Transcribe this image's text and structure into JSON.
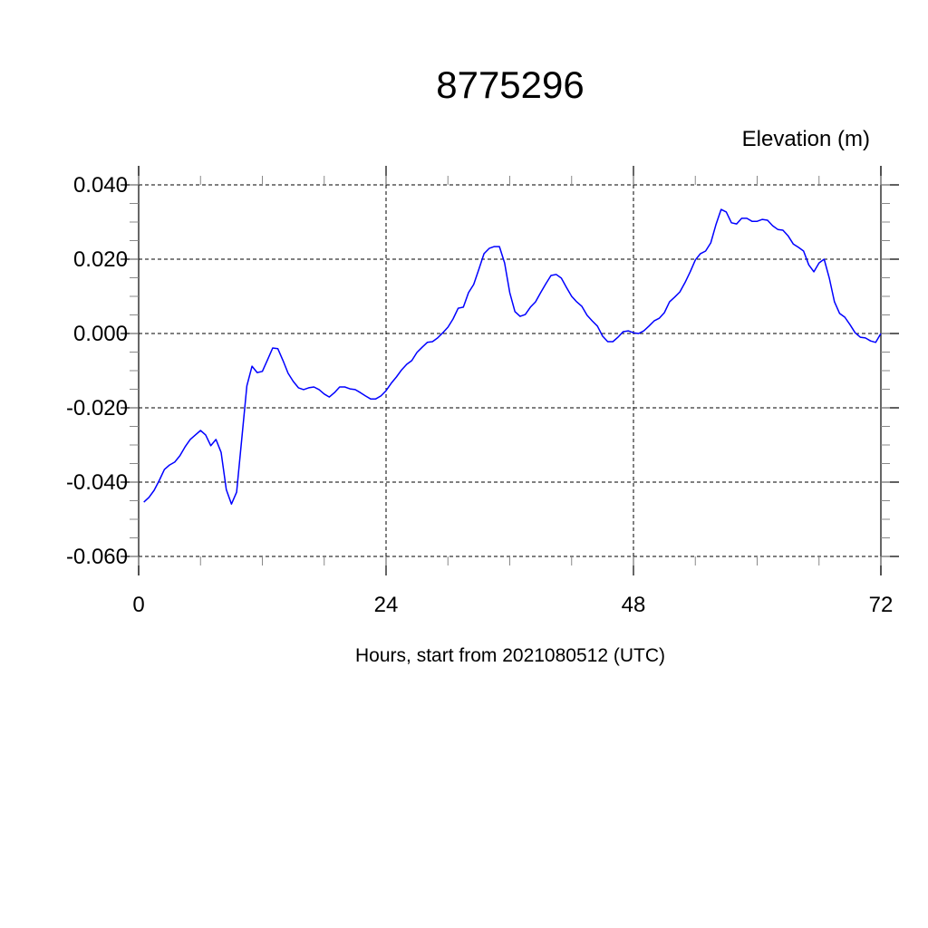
{
  "chart_data": {
    "type": "line",
    "title": "8775296",
    "ylabel": "Elevation (m)",
    "xlabel": "Hours, start from 2021080512 (UTC)",
    "xlim": [
      0,
      72
    ],
    "ylim": [
      -0.06,
      0.04
    ],
    "x_ticks": [
      0,
      24,
      48,
      72
    ],
    "x_tick_labels": [
      "0",
      "24",
      "48",
      "72"
    ],
    "x_minor_step": 6,
    "y_ticks": [
      -0.06,
      -0.04,
      -0.02,
      0.0,
      0.02,
      0.04
    ],
    "y_tick_labels": [
      "-0.060",
      "-0.040",
      "-0.020",
      "0.000",
      "0.020",
      "0.040"
    ],
    "y_minor_step": 0.005,
    "grid": true,
    "line_color": "#0000ff",
    "series": [
      {
        "x": [
          0.5,
          1,
          1.5,
          2,
          2.5,
          3,
          3.5,
          4,
          4.5,
          5,
          5.5,
          6,
          6.5,
          7,
          7.5,
          8,
          8.5,
          9,
          9.5,
          10,
          10.5,
          11,
          11.5,
          12,
          12.5,
          13,
          13.5,
          14,
          14.5,
          15,
          15.5,
          16,
          16.5,
          17,
          17.5,
          18,
          18.5,
          19,
          19.5,
          20,
          20.5,
          21,
          21.5,
          22,
          22.5,
          23,
          23.5,
          24,
          24.5,
          25,
          25.5,
          26,
          26.5,
          27,
          27.5,
          28,
          28.5,
          29,
          29.5,
          30,
          30.5,
          31,
          31.5,
          32,
          32.5,
          33,
          33.5,
          34,
          34.5,
          35,
          35.5,
          36,
          36.5,
          37,
          37.5,
          38,
          38.5,
          39,
          39.5,
          40,
          40.5,
          41,
          41.5,
          42,
          42.5,
          43,
          43.5,
          44,
          44.5,
          45,
          45.5,
          46,
          46.5,
          47,
          47.5,
          48,
          48.5,
          49,
          49.5,
          50,
          50.5,
          51,
          51.5,
          52,
          52.5,
          53,
          53.5,
          54,
          54.5,
          55,
          55.5,
          56,
          56.5,
          57,
          57.5,
          58,
          58.5,
          59,
          59.5,
          60,
          60.5,
          61,
          61.5,
          62,
          62.5,
          63,
          63.5,
          64,
          64.5,
          65,
          65.5,
          66,
          66.5,
          67,
          67.5,
          68,
          68.5,
          69,
          69.5,
          70,
          70.5,
          71,
          71.5,
          72
        ],
        "y": [
          -0.0454,
          -0.0441,
          -0.0422,
          -0.0395,
          -0.0366,
          -0.0354,
          -0.0346,
          -0.0329,
          -0.0305,
          -0.0285,
          -0.0273,
          -0.0261,
          -0.0273,
          -0.0302,
          -0.0285,
          -0.032,
          -0.042,
          -0.0459,
          -0.0427,
          -0.0283,
          -0.0141,
          -0.0088,
          -0.0105,
          -0.0102,
          -0.0071,
          -0.0039,
          -0.0041,
          -0.0073,
          -0.0107,
          -0.0129,
          -0.0146,
          -0.0151,
          -0.0146,
          -0.0144,
          -0.0151,
          -0.0163,
          -0.0171,
          -0.0159,
          -0.0144,
          -0.0144,
          -0.0149,
          -0.0151,
          -0.0159,
          -0.0168,
          -0.0176,
          -0.0176,
          -0.0168,
          -0.0154,
          -0.0134,
          -0.0117,
          -0.0098,
          -0.0083,
          -0.0073,
          -0.0051,
          -0.0037,
          -0.0024,
          -0.0022,
          -0.0012,
          0.0002,
          0.0017,
          0.0039,
          0.0068,
          0.0071,
          0.011,
          0.0132,
          0.0173,
          0.0215,
          0.0229,
          0.0234,
          0.0234,
          0.019,
          0.011,
          0.0059,
          0.0046,
          0.0051,
          0.0071,
          0.0085,
          0.011,
          0.0134,
          0.0156,
          0.0159,
          0.0149,
          0.0124,
          0.01,
          0.0085,
          0.0073,
          0.0049,
          0.0034,
          0.002,
          -0.0007,
          -0.0022,
          -0.0022,
          -0.001,
          0.0005,
          0.0007,
          0.0002,
          0.0,
          0.0007,
          0.002,
          0.0034,
          0.0041,
          0.0056,
          0.0085,
          0.0098,
          0.0112,
          0.0137,
          0.0166,
          0.0198,
          0.0215,
          0.0222,
          0.0244,
          0.0293,
          0.0334,
          0.0327,
          0.0298,
          0.0295,
          0.031,
          0.031,
          0.0302,
          0.0302,
          0.0307,
          0.0305,
          0.029,
          0.028,
          0.0278,
          0.0263,
          0.0241,
          0.0232,
          0.0222,
          0.0185,
          0.0166,
          0.019,
          0.02,
          0.0149,
          0.0085,
          0.0054,
          0.0044,
          0.0024,
          0.0002,
          -0.001,
          -0.0012,
          -0.002,
          -0.0024,
          0.0
        ]
      }
    ]
  }
}
